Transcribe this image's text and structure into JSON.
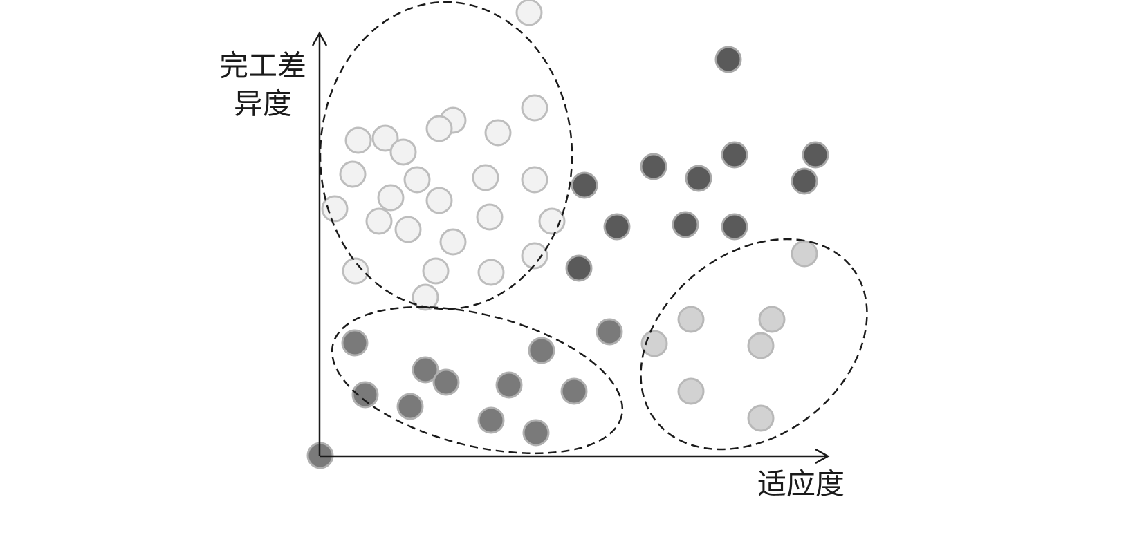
{
  "axis_labels": {
    "y": [
      "完工差",
      "异度"
    ],
    "x": "适应度"
  }
}
